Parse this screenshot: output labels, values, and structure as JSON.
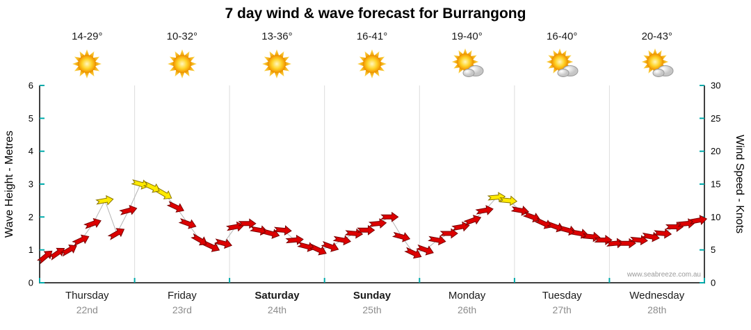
{
  "title": "7 day wind & wave forecast for Burrangong",
  "watermark": "www.seabreeze.com.au",
  "forecast": {
    "days": [
      {
        "name": "Thursday",
        "date": "22nd",
        "temp": "14-29°",
        "icon": "sun",
        "bold": false
      },
      {
        "name": "Friday",
        "date": "23rd",
        "temp": "10-32°",
        "icon": "sun",
        "bold": false
      },
      {
        "name": "Saturday",
        "date": "24th",
        "temp": "13-36°",
        "icon": "sun",
        "bold": true
      },
      {
        "name": "Sunday",
        "date": "25th",
        "temp": "16-41°",
        "icon": "sun",
        "bold": true
      },
      {
        "name": "Monday",
        "date": "26th",
        "temp": "19-40°",
        "icon": "sun-cloud",
        "bold": false
      },
      {
        "name": "Tuesday",
        "date": "27th",
        "temp": "16-40°",
        "icon": "sun-cloud",
        "bold": false
      },
      {
        "name": "Wednesday",
        "date": "28th",
        "temp": "20-43°",
        "icon": "sun-cloud",
        "bold": false
      }
    ]
  },
  "axes": {
    "left_label": "Wave Height - Metres",
    "right_label": "Wind Speed - Knots",
    "left_ticks": [
      0,
      1,
      2,
      3,
      4,
      5,
      6
    ],
    "right_ticks": [
      0,
      5,
      10,
      15,
      20,
      25,
      30
    ]
  },
  "colors": {
    "arrow_red": "#DD0000",
    "arrow_red_stroke": "#7A0000",
    "arrow_yellow": "#FFEB00",
    "arrow_yellow_stroke": "#8A7500",
    "tick": "#00AAAA",
    "axis": "#000000",
    "day_separator": "#DCDCDC",
    "connector": "#B3B3B3"
  },
  "chart_data": {
    "type": "line",
    "subtype": "wind-arrow-series",
    "title": "7 day wind & wave forecast for Burrangong",
    "x_days": [
      "Thursday 22nd",
      "Friday 23rd",
      "Saturday 24th",
      "Sunday 25th",
      "Monday 26th",
      "Tuesday 27th",
      "Wednesday 28th"
    ],
    "points_per_day": 8,
    "ylabel_left": "Wave Height - Metres",
    "ylabel_right": "Wind Speed - Knots",
    "ylim_left_metres": [
      0,
      6
    ],
    "ylim_right_knots": [
      0,
      30
    ],
    "wind_knots": [
      4,
      4.5,
      5,
      6.5,
      9,
      12.5,
      7.5,
      11,
      15,
      14.5,
      13.5,
      11.5,
      9,
      6.5,
      5.5,
      6,
      8.5,
      9,
      8,
      7.5,
      8,
      6.5,
      5.5,
      5,
      5.5,
      6.5,
      7.5,
      8,
      9,
      10,
      7,
      4.5,
      5,
      6.5,
      7.5,
      8.5,
      9.5,
      11,
      13,
      12.5,
      11,
      10,
      9,
      8.5,
      8,
      7.5,
      7,
      6.5,
      6,
      6,
      6.5,
      7,
      7.5,
      8.5,
      9,
      9.5
    ],
    "wind_dir_deg": [
      -40,
      -35,
      -30,
      -25,
      -20,
      -10,
      -30,
      -15,
      15,
      25,
      30,
      25,
      20,
      30,
      25,
      15,
      -10,
      0,
      10,
      15,
      5,
      -5,
      15,
      25,
      20,
      10,
      5,
      0,
      -5,
      0,
      15,
      25,
      20,
      10,
      0,
      -10,
      -20,
      -10,
      -5,
      5,
      10,
      20,
      25,
      20,
      15,
      10,
      5,
      0,
      -5,
      0,
      5,
      10,
      5,
      0,
      -5,
      -10
    ],
    "arrow_color": [
      "red",
      "red",
      "red",
      "red",
      "red",
      "yellow",
      "red",
      "red",
      "yellow",
      "yellow",
      "yellow",
      "red",
      "red",
      "red",
      "red",
      "red",
      "red",
      "red",
      "red",
      "red",
      "red",
      "red",
      "red",
      "red",
      "red",
      "red",
      "red",
      "red",
      "red",
      "red",
      "red",
      "red",
      "red",
      "red",
      "red",
      "red",
      "red",
      "red",
      "yellow",
      "yellow",
      "red",
      "red",
      "red",
      "red",
      "red",
      "red",
      "red",
      "red",
      "red",
      "red",
      "red",
      "red",
      "red",
      "red",
      "red",
      "red"
    ]
  }
}
